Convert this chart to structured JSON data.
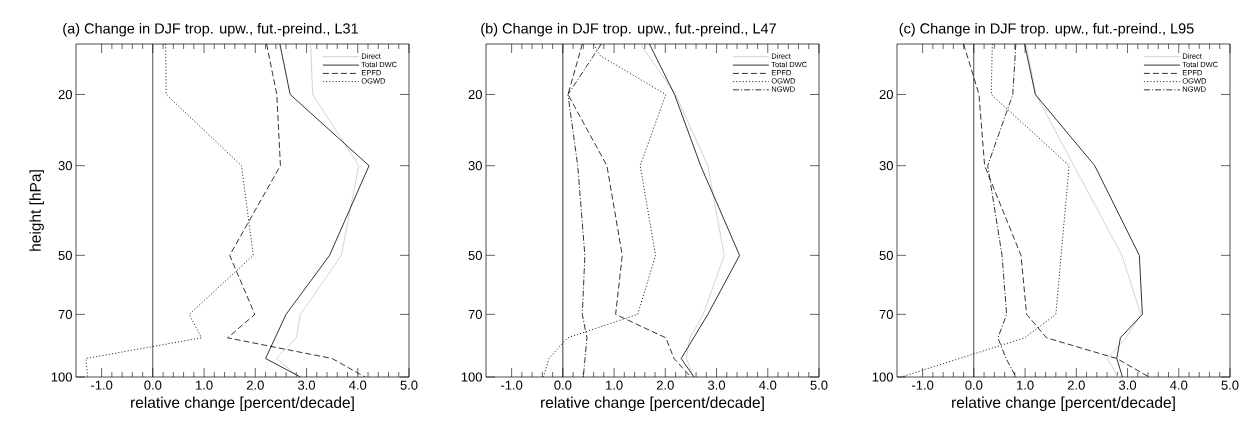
{
  "chart_data": [
    {
      "type": "line",
      "title": "(a) Change in DJF trop. upw., fut.-preind., L31",
      "xlabel": "relative change [percent/decade]",
      "ylabel": "height [hPa]",
      "xlim": [
        -1.5,
        5
      ],
      "ylim": [
        100,
        15
      ],
      "log": "y",
      "xticks": [
        {
          "value": -1,
          "label": "-1.0"
        },
        {
          "value": 0,
          "label": "0.0"
        },
        {
          "value": 1,
          "label": "1.0"
        },
        {
          "value": 2,
          "label": "2.0"
        },
        {
          "value": 3,
          "label": "3.0"
        },
        {
          "value": 4,
          "label": "4.0"
        },
        {
          "value": 5,
          "label": "5.0"
        }
      ],
      "yticks": [
        20,
        30,
        50,
        70,
        100
      ],
      "legend": "top right",
      "ref_lines": [
        {
          "axis": "x",
          "value": 0,
          "color": "#000000"
        }
      ],
      "series": [
        {
          "name": "Direct",
          "color": "#c8c8c8",
          "line_style": "solid",
          "x": [
            3.08,
            3.12,
            4.02,
            3.68,
            2.88,
            2.8,
            2.41,
            2.85
          ],
          "values": [
            15,
            20,
            30,
            50,
            70,
            80,
            90,
            100
          ]
        },
        {
          "name": "Total DWC",
          "color": "#000000",
          "line_style": "solid",
          "x": [
            2.48,
            2.68,
            4.22,
            3.45,
            2.6,
            2.2,
            2.88
          ],
          "values": [
            15,
            20,
            30,
            50,
            70,
            90,
            100
          ]
        },
        {
          "name": "EPFD",
          "color": "#000000",
          "line_style": "dashed",
          "x": [
            2.22,
            2.42,
            2.49,
            1.5,
            1.99,
            1.46,
            3.5,
            4.14
          ],
          "values": [
            15,
            20,
            30,
            50,
            70,
            80,
            90,
            100
          ]
        },
        {
          "name": "OGWD",
          "color": "#000000",
          "line_style": "dotted",
          "x": [
            0.25,
            0.26,
            1.73,
            1.96,
            0.71,
            0.95,
            -1.31,
            -1.27
          ],
          "values": [
            15,
            20,
            30,
            50,
            70,
            80,
            90,
            100
          ]
        }
      ]
    },
    {
      "type": "line",
      "title": "(b) Change in DJF trop. upw., fut.-preind., L47",
      "xlabel": "relative change [percent/decade]",
      "xlim": [
        -1.5,
        5
      ],
      "ylim": [
        100,
        15
      ],
      "log": "y",
      "xticks": [
        {
          "value": -1,
          "label": "-1.0"
        },
        {
          "value": 0,
          "label": "0.0"
        },
        {
          "value": 1,
          "label": "1.0"
        },
        {
          "value": 2,
          "label": "2.0"
        },
        {
          "value": 3,
          "label": "3.0"
        },
        {
          "value": 4,
          "label": "4.0"
        },
        {
          "value": 5,
          "label": "5.0"
        }
      ],
      "yticks": [
        20,
        30,
        50,
        70,
        100
      ],
      "legend": "top right",
      "ref_lines": [
        {
          "axis": "x",
          "value": 0,
          "color": "#000000"
        }
      ],
      "series": [
        {
          "name": "Direct",
          "color": "#c8c8c8",
          "line_style": "solid",
          "x": [
            1.51,
            2.2,
            2.83,
            3.15,
            2.74,
            2.48,
            2.41,
            2.55
          ],
          "values": [
            15,
            20,
            30,
            50,
            70,
            80,
            90,
            100
          ]
        },
        {
          "name": "Total DWC",
          "color": "#000000",
          "line_style": "solid",
          "x": [
            1.69,
            2.18,
            2.69,
            3.45,
            2.83,
            2.31,
            2.56
          ],
          "values": [
            15,
            20,
            30,
            50,
            70,
            90,
            100
          ]
        },
        {
          "name": "EPFD",
          "color": "#000000",
          "line_style": "dashed",
          "x": [
            0.38,
            0.1,
            0.86,
            1.16,
            1.03,
            2.01,
            2.17,
            2.5
          ],
          "values": [
            15,
            20,
            30,
            50,
            70,
            80,
            90,
            100
          ]
        },
        {
          "name": "OGWD",
          "color": "#000000",
          "line_style": "dotted",
          "x": [
            0.6,
            0.72,
            2.01,
            1.51,
            1.81,
            1.46,
            0.09,
            -0.27,
            -0.38
          ],
          "values": [
            15,
            16,
            20,
            30,
            50,
            70,
            80,
            90,
            100
          ]
        },
        {
          "name": "NGWD",
          "color": "#000000",
          "line_style": "dashdot",
          "x": [
            0.75,
            0.1,
            0.29,
            0.43,
            0.38,
            0.47,
            0.4
          ],
          "values": [
            15,
            20,
            30,
            50,
            70,
            80,
            100
          ]
        }
      ]
    },
    {
      "type": "line",
      "title": "(c) Change in DJF trop. upw., fut.-preind., L95",
      "xlabel": "relative change [percent/decade]",
      "xlim": [
        -1.5,
        5
      ],
      "ylim": [
        100,
        15
      ],
      "log": "y",
      "xticks": [
        {
          "value": -1,
          "label": "-1.0"
        },
        {
          "value": 0,
          "label": "0.0"
        },
        {
          "value": 1,
          "label": "1.0"
        },
        {
          "value": 2,
          "label": "2.0"
        },
        {
          "value": 3,
          "label": "3.0"
        },
        {
          "value": 4,
          "label": "4.0"
        },
        {
          "value": 5,
          "label": "5.0"
        }
      ],
      "yticks": [
        20,
        30,
        50,
        70,
        100
      ],
      "legend": "top right",
      "ref_lines": [
        {
          "axis": "x",
          "value": 0,
          "color": "#000000"
        }
      ],
      "series": [
        {
          "name": "Direct",
          "color": "#c8c8c8",
          "line_style": "solid",
          "x": [
            1.02,
            1.21,
            2.89,
            3.26,
            2.97,
            2.61,
            2.81
          ],
          "values": [
            15,
            20,
            50,
            70,
            80,
            90,
            100
          ]
        },
        {
          "name": "Total DWC",
          "color": "#000000",
          "line_style": "solid",
          "x": [
            0.99,
            1.2,
            2.36,
            3.23,
            3.29,
            2.86,
            2.79,
            2.9
          ],
          "values": [
            15,
            20,
            30,
            50,
            70,
            80,
            90,
            100
          ]
        },
        {
          "name": "EPFD",
          "color": "#000000",
          "line_style": "dashed",
          "x": [
            -0.2,
            0.1,
            0.21,
            0.92,
            1.03,
            1.42,
            2.79,
            3.42
          ],
          "values": [
            15,
            20,
            30,
            50,
            70,
            80,
            90,
            100
          ]
        },
        {
          "name": "OGWD",
          "color": "#000000",
          "line_style": "dotted",
          "x": [
            0.36,
            0.34,
            1.86,
            1.6,
            0.99,
            -1.42
          ],
          "values": [
            15,
            20,
            30,
            70,
            80,
            100
          ]
        },
        {
          "name": "NGWD",
          "color": "#000000",
          "line_style": "dashdot",
          "x": [
            0.82,
            0.76,
            0.27,
            0.55,
            0.64,
            0.47,
            0.63,
            0.82
          ],
          "values": [
            15,
            20,
            30,
            50,
            70,
            80,
            90,
            100
          ]
        }
      ]
    }
  ]
}
